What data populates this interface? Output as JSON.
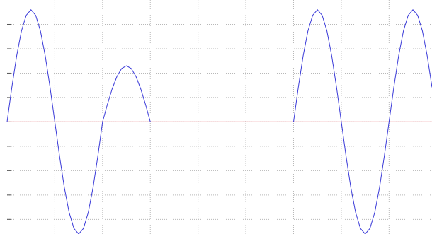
{
  "chart_data": {
    "type": "line",
    "x": [
      0,
      0.1,
      0.2,
      0.3,
      0.4,
      0.5,
      0.6,
      0.7,
      0.8,
      0.9,
      1,
      1.1,
      1.2,
      1.3,
      1.4,
      1.5,
      1.6,
      1.7,
      1.8,
      1.9,
      2,
      2.1,
      2.2,
      2.3,
      2.4,
      2.5,
      2.6,
      2.7,
      2.8,
      2.9,
      3,
      3.1,
      3.2,
      3.3,
      3.4,
      3.5,
      3.6,
      3.7,
      3.8,
      3.9,
      4,
      4.1,
      4.2,
      4.3,
      4.4,
      4.5,
      4.6,
      4.7,
      4.8,
      4.9,
      5,
      5.1,
      5.2,
      5.3,
      5.4,
      5.5,
      5.6,
      5.7,
      5.8,
      5.9,
      6,
      6.1,
      6.2,
      6.3,
      6.4,
      6.5,
      6.6,
      6.7,
      6.8,
      6.9,
      7,
      7.1,
      7.2,
      7.3,
      7.4,
      7.5,
      7.6,
      7.7,
      7.8,
      7.9,
      8,
      8.1,
      8.2,
      8.3,
      8.4,
      8.5,
      8.6,
      8.7,
      8.8,
      8.9
    ],
    "series": [
      {
        "color": "#3a3ad8",
        "values": [
          0,
          1.42,
          2.7,
          3.72,
          4.37,
          4.6,
          4.37,
          3.72,
          2.7,
          1.42,
          0,
          -1.42,
          -2.7,
          -3.72,
          -4.37,
          -4.6,
          -4.37,
          -3.72,
          -2.7,
          -1.42,
          0,
          0.71,
          1.35,
          1.86,
          2.19,
          2.3,
          2.19,
          1.86,
          1.35,
          0.71,
          0,
          null,
          null,
          null,
          null,
          null,
          null,
          null,
          null,
          null,
          null,
          null,
          null,
          null,
          null,
          null,
          null,
          null,
          null,
          null,
          null,
          null,
          null,
          null,
          null,
          null,
          null,
          null,
          null,
          null,
          0,
          1.42,
          2.7,
          3.72,
          4.37,
          4.6,
          4.37,
          3.72,
          2.7,
          1.42,
          0,
          -1.42,
          -2.7,
          -3.72,
          -4.37,
          -4.6,
          -4.37,
          -3.72,
          -2.7,
          -1.42,
          0,
          1.42,
          2.7,
          3.72,
          4.37,
          4.6,
          4.37,
          3.72,
          2.7,
          1.42
        ]
      }
    ],
    "reference_line": {
      "y": 0,
      "color": "#e0303a"
    },
    "xlim": [
      0,
      8.9
    ],
    "xticks": [
      1,
      2,
      3,
      4,
      5,
      6,
      7,
      8
    ],
    "ylim": [
      -4.6,
      5
    ],
    "yticks": [
      -4,
      -3,
      -2,
      -1,
      0,
      1,
      2,
      3,
      4
    ],
    "grid": true
  }
}
